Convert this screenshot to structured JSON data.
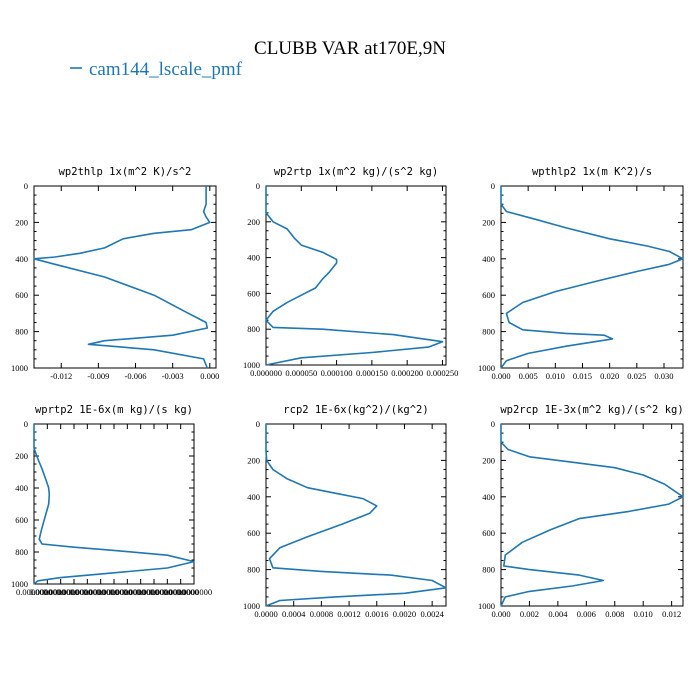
{
  "figure": {
    "title": "CLUBB VAR at170E,9N",
    "legend_label": "cam144_lscale_pmf",
    "line_color": "#1f77b4"
  },
  "chart_data": [
    {
      "type": "line",
      "title": "wp2thlp  1x(m^2 K)/s^2",
      "series": [
        {
          "name": "cam144_lscale_pmf",
          "x": [
            -0.0003,
            -0.0003,
            -0.0003,
            -0.0005,
            -0.0003,
            0.0,
            -0.0015,
            -0.0045,
            -0.007,
            -0.0085,
            -0.0105,
            -0.0125,
            -0.0142,
            -0.0125,
            -0.0085,
            -0.0045,
            -0.002,
            -0.0003,
            -0.0002,
            -0.003,
            -0.0085,
            -0.0098,
            -0.0045,
            -0.0005,
            -0.0002
          ],
          "y": [
            0,
            50,
            100,
            140,
            170,
            200,
            240,
            260,
            290,
            340,
            370,
            390,
            400,
            430,
            500,
            600,
            690,
            750,
            780,
            820,
            850,
            870,
            900,
            950,
            1000
          ]
        }
      ],
      "xlim": [
        -0.0142,
        0.0005
      ],
      "ylim": [
        1000,
        0
      ],
      "xticks": [
        -0.012,
        -0.009,
        -0.006,
        -0.003,
        0.0
      ],
      "xtick_labels": [
        "-0.012",
        "-0.009",
        "-0.006",
        "-0.003",
        "0.000"
      ],
      "yticks": [
        0,
        200,
        400,
        600,
        800,
        1000
      ],
      "ytick_labels": [
        "0",
        "200",
        "400",
        "600",
        "800",
        "1000"
      ]
    },
    {
      "type": "line",
      "title": "wp2rtp  1x(m^2 kg)/(s^2 kg)",
      "series": [
        {
          "name": "cam144_lscale_pmf",
          "x": [
            0.0,
            0.0,
            0.0,
            1e-05,
            3e-05,
            4e-05,
            5e-05,
            8e-05,
            0.0001,
            0.0001,
            9e-05,
            8e-05,
            7e-05,
            5e-05,
            3e-05,
            1e-05,
            0.0,
            1e-05,
            8e-05,
            0.00018,
            0.00025,
            0.00023,
            0.00015,
            5e-05,
            0.0
          ],
          "y": [
            0,
            100,
            150,
            200,
            240,
            290,
            330,
            370,
            410,
            430,
            480,
            520,
            570,
            610,
            650,
            700,
            750,
            790,
            800,
            830,
            870,
            900,
            930,
            960,
            1000
          ]
        }
      ],
      "xlim": [
        0,
        0.000255
      ],
      "ylim": [
        1000,
        0
      ],
      "xticks": [
        0.0,
        5e-05,
        0.0001,
        0.00015,
        0.0002,
        0.00025
      ],
      "xtick_labels": [
        "0.000000",
        "0.000050",
        "0.000100",
        "0.000150",
        "0.000200",
        "0.000250"
      ],
      "yticks": [
        0,
        200,
        400,
        600,
        800,
        1000
      ],
      "ytick_labels": [
        "0",
        "200",
        "400",
        "600",
        "800",
        "1000"
      ]
    },
    {
      "type": "line",
      "title": "wpthlp2  1x(m K^2)/s",
      "series": [
        {
          "name": "cam144_lscale_pmf",
          "x": [
            0.0,
            0.0,
            0.001,
            0.006,
            0.012,
            0.02,
            0.027,
            0.031,
            0.0335,
            0.031,
            0.025,
            0.018,
            0.01,
            0.004,
            0.001,
            0.0015,
            0.004,
            0.012,
            0.019,
            0.0205,
            0.012,
            0.005,
            0.001,
            0.0
          ],
          "y": [
            0,
            100,
            140,
            180,
            230,
            290,
            330,
            360,
            400,
            430,
            470,
            520,
            580,
            640,
            700,
            750,
            790,
            810,
            820,
            840,
            880,
            920,
            960,
            1000
          ]
        }
      ],
      "xlim": [
        0,
        0.0335
      ],
      "ylim": [
        1000,
        0
      ],
      "xticks": [
        0.0,
        0.005,
        0.01,
        0.015,
        0.02,
        0.025,
        0.03
      ],
      "xtick_labels": [
        "0.000",
        "0.005",
        "0.010",
        "0.015",
        "0.020",
        "0.025",
        "0.030"
      ],
      "yticks": [
        0,
        200,
        400,
        600,
        800,
        1000
      ],
      "ytick_labels": [
        "0",
        "200",
        "400",
        "600",
        "800",
        "1000"
      ]
    },
    {
      "type": "line",
      "title": "wprtp2  1E-6x(m kg)/(s kg)",
      "series": [
        {
          "name": "cam144_lscale_pmf",
          "x": [
            0.0,
            0.0,
            0.002,
            0.006,
            0.009,
            0.011,
            0.0115,
            0.011,
            0.009,
            0.007,
            0.005,
            0.004,
            0.006,
            0.03,
            0.06,
            0.1,
            0.12,
            0.1,
            0.06,
            0.02,
            0.003,
            0.0
          ],
          "y": [
            0,
            150,
            200,
            280,
            350,
            400,
            440,
            500,
            560,
            620,
            680,
            720,
            750,
            770,
            790,
            820,
            860,
            900,
            930,
            960,
            980,
            1000
          ]
        }
      ],
      "xlim": [
        0,
        0.12
      ],
      "ylim": [
        1000,
        0
      ],
      "xticks": [
        0.0,
        0.01,
        0.02,
        0.03,
        0.04,
        0.05,
        0.06,
        0.07,
        0.08,
        0.09,
        0.1,
        0.11,
        0.12
      ],
      "xtick_labels": [
        "0.0000000",
        "0.0000000",
        "0.0000000",
        "0.0000000",
        "0.0000000",
        "0.0000000",
        "0.0000000",
        "0.0000000",
        "0.0000000",
        "0.0000000",
        "0.0000000",
        "0.0000000",
        "0.0000000"
      ],
      "yticks": [
        0,
        200,
        400,
        600,
        800,
        1000
      ],
      "ytick_labels": [
        "0",
        "200",
        "400",
        "600",
        "800",
        "1000"
      ]
    },
    {
      "type": "line",
      "title": "rcp2  1E-6x(kg^2)/(kg^2)",
      "series": [
        {
          "name": "cam144_lscale_pmf",
          "x": [
            0.0,
            0.0,
            1e-05,
            0.0001,
            0.0003,
            0.0006,
            0.001,
            0.0014,
            0.0016,
            0.0015,
            0.0011,
            0.0006,
            0.0002,
            5e-05,
            0.0001,
            0.0008,
            0.0018,
            0.0024,
            0.0026,
            0.002,
            0.001,
            0.0002,
            0.0
          ],
          "y": [
            0,
            150,
            200,
            250,
            300,
            350,
            380,
            410,
            450,
            490,
            550,
            620,
            680,
            740,
            790,
            810,
            830,
            860,
            900,
            930,
            950,
            970,
            1000
          ]
        }
      ],
      "xlim": [
        0,
        0.0026
      ],
      "ylim": [
        1000,
        0
      ],
      "xticks": [
        0.0,
        0.0004,
        0.0008,
        0.0012,
        0.0016,
        0.002,
        0.0024
      ],
      "xtick_labels": [
        "0.0000",
        "0.0004",
        "0.0008",
        "0.0012",
        "0.0016",
        "0.0020",
        "0.0024"
      ],
      "yticks": [
        0,
        200,
        400,
        600,
        800,
        1000
      ],
      "ytick_labels": [
        "0",
        "200",
        "400",
        "600",
        "800",
        "1000"
      ]
    },
    {
      "type": "line",
      "title": "wp2rcp  1E-3x(m^2 kg)/(s^2 kg)",
      "series": [
        {
          "name": "cam144_lscale_pmf",
          "x": [
            0.0,
            0.0,
            0.0005,
            0.002,
            0.005,
            0.008,
            0.01,
            0.0115,
            0.0128,
            0.0118,
            0.009,
            0.0055,
            0.0035,
            0.0015,
            0.0003,
            0.0002,
            0.002,
            0.0055,
            0.0072,
            0.005,
            0.002,
            0.0003,
            0.0
          ],
          "y": [
            0,
            100,
            140,
            180,
            210,
            240,
            280,
            330,
            400,
            440,
            480,
            520,
            580,
            650,
            720,
            780,
            800,
            830,
            860,
            890,
            920,
            950,
            1000
          ]
        }
      ],
      "xlim": [
        0,
        0.0128
      ],
      "ylim": [
        1000,
        0
      ],
      "xticks": [
        0.0,
        0.002,
        0.004,
        0.006,
        0.008,
        0.01,
        0.012
      ],
      "xtick_labels": [
        "0.000",
        "0.002",
        "0.004",
        "0.006",
        "0.008",
        "0.010",
        "0.012"
      ],
      "yticks": [
        0,
        200,
        400,
        600,
        800,
        1000
      ],
      "ytick_labels": [
        "0",
        "200",
        "400",
        "600",
        "800",
        "1000"
      ]
    }
  ]
}
